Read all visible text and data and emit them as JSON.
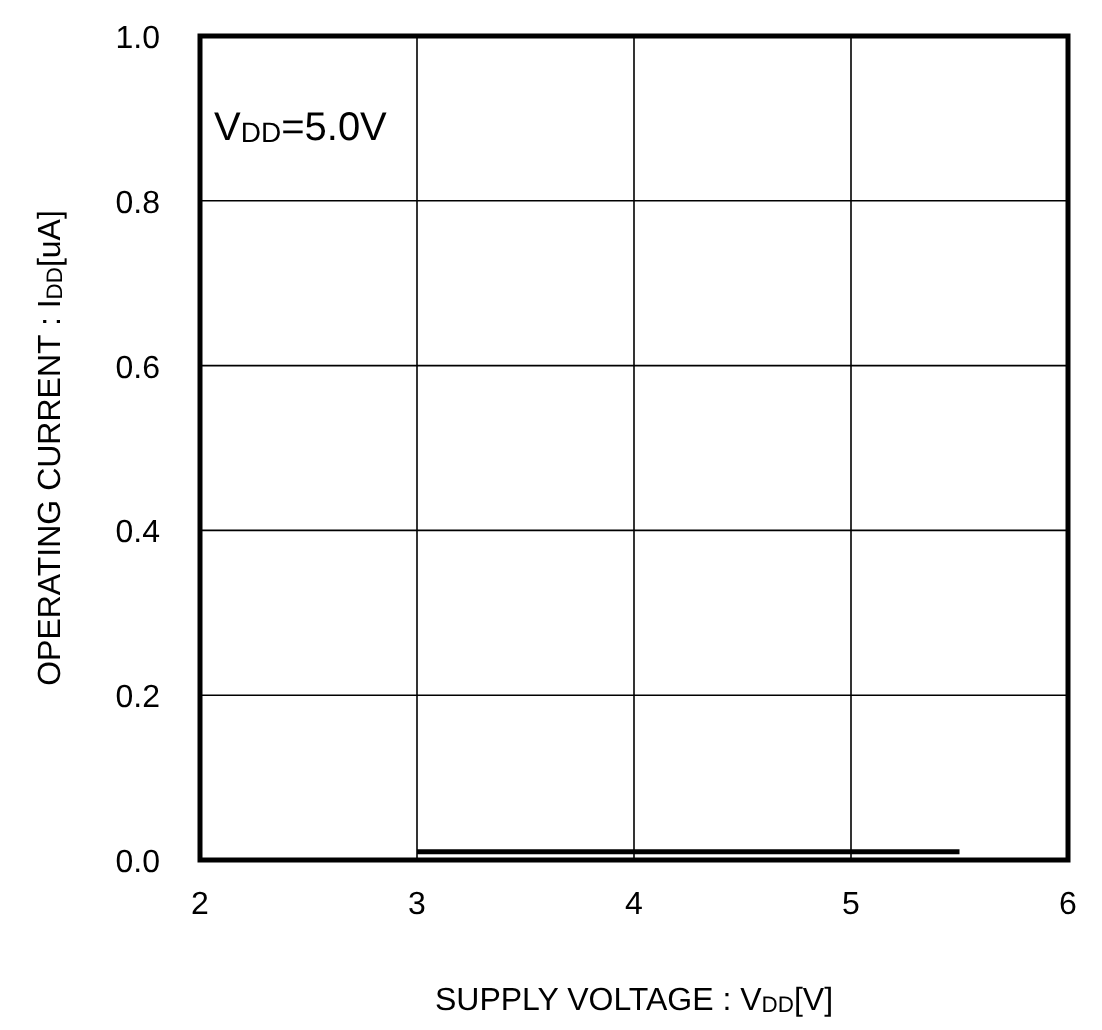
{
  "chart_data": {
    "type": "line",
    "xlabel": "SUPPLY VOLTAGE : V$_{DD}$[V]",
    "ylabel": "OPERATING CURRENT : I$_{DD}$[uA]",
    "annotations": [
      "V$_{DD}$=5.0V"
    ],
    "x": [
      3,
      5.5
    ],
    "series": [
      {
        "color": "#000000",
        "values": [
          0.01,
          0.01
        ]
      }
    ],
    "xlim": [
      2,
      6
    ],
    "xticks": [
      2,
      3,
      4,
      5,
      6
    ],
    "ylim": [
      0,
      1
    ],
    "yticks": [
      {
        "value": 0,
        "label": "0.0"
      },
      {
        "value": 0.2,
        "label": "0.2"
      },
      {
        "value": 0.4,
        "label": "0.4"
      },
      {
        "value": 0.6,
        "label": "0.6"
      },
      {
        "value": 0.8,
        "label": "0.8"
      },
      {
        "value": 1,
        "label": "1.0"
      }
    ],
    "grid": true,
    "marker": "none",
    "line_style": "solid"
  }
}
